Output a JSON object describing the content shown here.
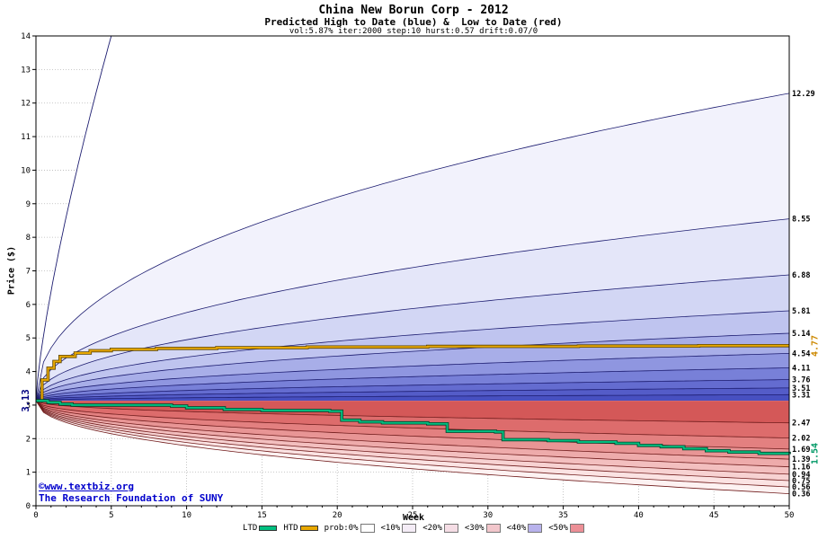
{
  "header": {
    "title": "China New Borun Corp - 2012",
    "subtitle": "Predicted High to Date (blue) &  Low to Date (red)",
    "params": "vol:5.87% iter:2000 step:10 hurst:0.57 drift:0.07/0"
  },
  "watermark": {
    "site": "©www.textbiz.org",
    "org": "The Research Foundation of SUNY"
  },
  "annotations": {
    "start_price": "3.13",
    "htd_final": "4.77",
    "ltd_final": "1.54"
  },
  "legend": {
    "ltd_label": "LTD",
    "htd_label": "HTD",
    "items": [
      "prob:0%",
      "<10%",
      "<20%",
      "<30%",
      "<40%",
      "<50%"
    ],
    "item_colors": [
      "#ffffff",
      "#f4ecf6",
      "#f5dde5",
      "#f2c6cb",
      "#b8b2ec",
      "#ec8f96"
    ],
    "ltd_color": "#00c080",
    "htd_color": "#e8a800"
  },
  "chart_data": {
    "type": "area",
    "title": "China New Borun Corp - 2012",
    "subtitle": "Predicted High to Date (blue) & Low to Date (red)",
    "xlabel": "Week",
    "ylabel": "Price ($)",
    "x_range": [
      0,
      50
    ],
    "y_range": [
      0,
      14
    ],
    "x_ticks": [
      0,
      5,
      10,
      15,
      20,
      25,
      30,
      35,
      40,
      45,
      50
    ],
    "y_ticks": [
      0,
      1,
      2,
      3,
      4,
      5,
      6,
      7,
      8,
      9,
      10,
      11,
      12,
      13,
      14
    ],
    "grid": true,
    "start_week": 0,
    "start_price": 3.13,
    "upper_envelope": {
      "max_price": 14,
      "reach_week": 5,
      "exponent": 0.75
    },
    "upper_contour_ends": [
      12.29,
      8.55,
      6.88,
      5.81,
      5.14,
      4.54,
      4.11,
      3.76,
      3.51,
      3.31
    ],
    "lower_contour_ends": [
      2.47,
      2.02,
      1.69,
      1.39,
      1.16,
      0.94,
      0.75,
      0.56,
      0.36
    ],
    "contour_exponent": 0.45,
    "upper_band_colors": [
      "#ffffff",
      "#f2f2fc",
      "#e4e6f9",
      "#d2d6f4",
      "#bfc4ef",
      "#a8aee8",
      "#8f96e0",
      "#7880d8",
      "#646cd0",
      "#545cc8",
      "#4850c0"
    ],
    "lower_band_colors": [
      "#d45858",
      "#dd6c6c",
      "#e38080",
      "#e89595",
      "#eeabab",
      "#f3bfbf",
      "#f7d2d2",
      "#fbe3e3",
      "#fdf2f2"
    ],
    "upper_line_color": "#1c1c70",
    "lower_line_color": "#701c1c",
    "right_labels": [
      {
        "text": "12.29",
        "value": 12.29
      },
      {
        "text": "8.55",
        "value": 8.55
      },
      {
        "text": "6.88",
        "value": 6.88
      },
      {
        "text": "5.81",
        "value": 5.81
      },
      {
        "text": "5.14",
        "value": 5.14
      },
      {
        "text": "4.54",
        "value": 4.54
      },
      {
        "text": "4.11",
        "value": 4.11
      },
      {
        "text": "3.76",
        "value": 3.76
      },
      {
        "text": "3.51",
        "value": 3.51
      },
      {
        "text": "3.31",
        "value": 3.31
      },
      {
        "text": "2.47",
        "value": 2.47
      },
      {
        "text": "2.02",
        "value": 2.02
      },
      {
        "text": "1.69",
        "value": 1.69
      },
      {
        "text": "1.39",
        "value": 1.39
      },
      {
        "text": "1.16",
        "value": 1.16
      },
      {
        "text": "0.94",
        "value": 0.94
      },
      {
        "text": "0.75",
        "value": 0.75
      },
      {
        "text": "0.56",
        "value": 0.56
      },
      {
        "text": "0.36",
        "value": 0.36
      }
    ],
    "htd_series": {
      "name": "HTD",
      "color": "#e8a800",
      "edge_color": "#5a4300",
      "final_value": 4.77,
      "steps": [
        [
          0,
          3.13
        ],
        [
          0.4,
          3.75
        ],
        [
          0.8,
          4.1
        ],
        [
          1.2,
          4.3
        ],
        [
          1.6,
          4.45
        ],
        [
          2.6,
          4.55
        ],
        [
          3.6,
          4.62
        ],
        [
          5,
          4.66
        ],
        [
          8,
          4.69
        ],
        [
          12,
          4.71
        ],
        [
          18,
          4.73
        ],
        [
          26,
          4.75
        ],
        [
          36,
          4.76
        ],
        [
          44,
          4.77
        ],
        [
          50,
          4.77
        ]
      ]
    },
    "ltd_series": {
      "name": "LTD",
      "color": "#00c080",
      "edge_color": "#00402a",
      "final_value": 1.54,
      "steps": [
        [
          0,
          3.13
        ],
        [
          0.8,
          3.08
        ],
        [
          1.6,
          3.03
        ],
        [
          2.4,
          3.0
        ],
        [
          9,
          2.97
        ],
        [
          10,
          2.92
        ],
        [
          12.5,
          2.87
        ],
        [
          15,
          2.84
        ],
        [
          19.5,
          2.82
        ],
        [
          20.3,
          2.55
        ],
        [
          21.5,
          2.5
        ],
        [
          23,
          2.47
        ],
        [
          26,
          2.44
        ],
        [
          27.3,
          2.22
        ],
        [
          30.5,
          2.2
        ],
        [
          31,
          1.97
        ],
        [
          34,
          1.94
        ],
        [
          36,
          1.9
        ],
        [
          38.5,
          1.86
        ],
        [
          40,
          1.8
        ],
        [
          41.5,
          1.76
        ],
        [
          43,
          1.7
        ],
        [
          44.5,
          1.64
        ],
        [
          46,
          1.6
        ],
        [
          48,
          1.56
        ],
        [
          50,
          1.54
        ]
      ]
    }
  }
}
